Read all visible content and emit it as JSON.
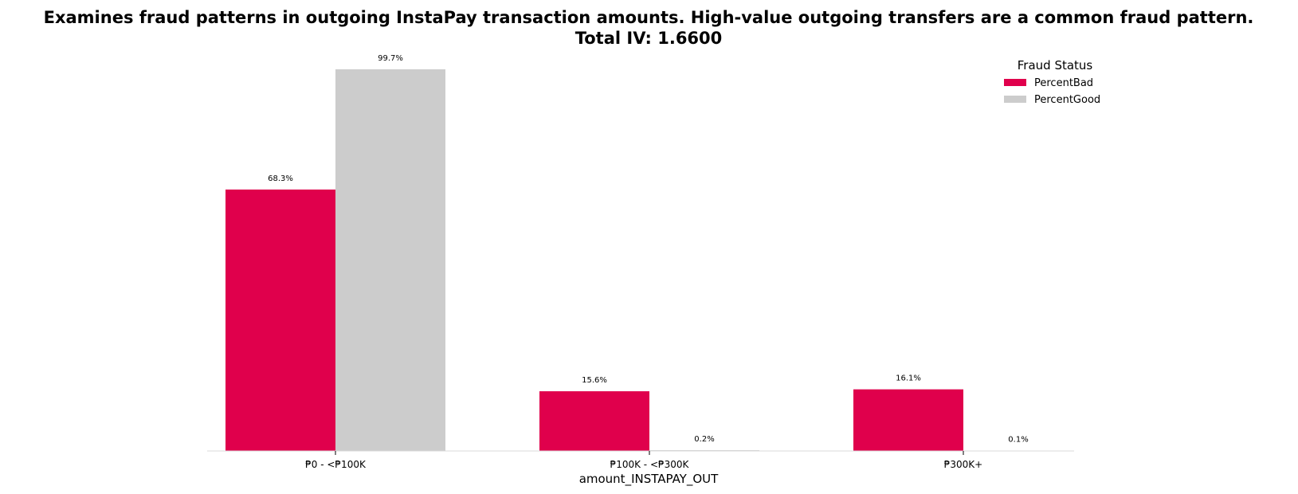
{
  "chart_data": {
    "type": "bar",
    "title": "Examines fraud patterns in outgoing InstaPay transaction amounts. High-value outgoing transfers are a common fraud pattern.",
    "subtitle": "Total IV: 1.6600",
    "xlabel": "amount_INSTAPAY_OUT",
    "ylabel": "",
    "categories": [
      "₱0 - <₱100K",
      "₱100K - <₱300K",
      "₱300K+"
    ],
    "series": [
      {
        "name": "PercentBad",
        "color": "#e0004c",
        "values": [
          68.3,
          15.6,
          16.1
        ],
        "labels": [
          "68.3%",
          "15.6%",
          "16.1%"
        ]
      },
      {
        "name": "PercentGood",
        "color": "#cccccc",
        "values": [
          99.7,
          0.2,
          0.1
        ],
        "labels": [
          "99.7%",
          "0.2%",
          "0.1%"
        ]
      }
    ],
    "ylim": [
      0,
      105
    ],
    "grid": false,
    "legend": {
      "title": "Fraud Status",
      "placement": "top-right"
    }
  }
}
